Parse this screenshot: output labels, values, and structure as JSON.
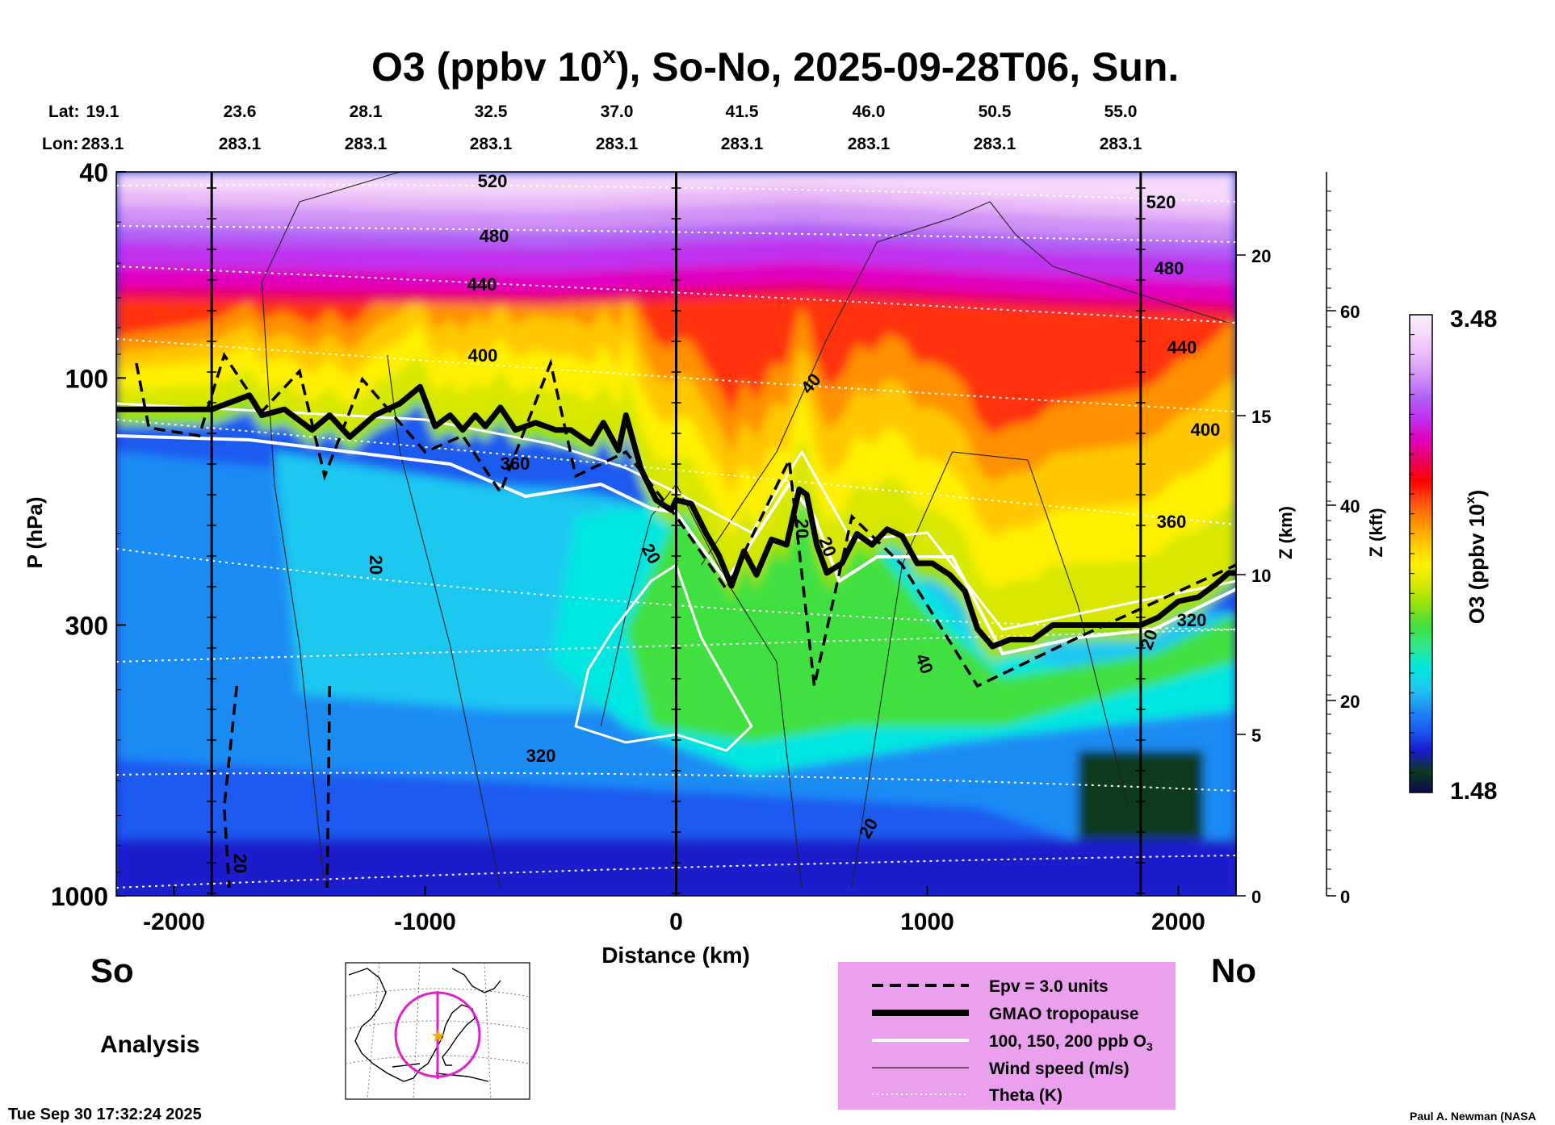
{
  "title": "O3 (ppbv 10",
  "title_sup": "x",
  "title_rest": "), So-No, 2025-09-28T06, Sun.",
  "lat_label": "Lat:",
  "lon_label": "Lon:",
  "lats": [
    "19.1",
    "23.6",
    "28.1",
    "32.5",
    "37.0",
    "41.5",
    "46.0",
    "50.5",
    "55.0"
  ],
  "lons": [
    "283.1",
    "283.1",
    "283.1",
    "283.1",
    "283.1",
    "283.1",
    "283.1",
    "283.1",
    "283.1"
  ],
  "y_label": "P (hPa)",
  "x_label": "Distance (km)",
  "z_km_label": "Z (km)",
  "z_kft_label": "Z (kft)",
  "left_end": "So",
  "right_end": "No",
  "analysis": "Analysis",
  "timestamp": "Tue Sep 30 17:32:24 2025",
  "credit": "Paul A. Newman (NASA",
  "colorbar": {
    "label": "O3 (ppbv 10",
    "label_sup": "x",
    "label_end": ")",
    "max_label": "3.48",
    "min_label": "1.48",
    "colors": [
      "#0a0a50",
      "#0b3a1e",
      "#1a1acc",
      "#1e5af0",
      "#1e8cf5",
      "#1ec8f0",
      "#00e6e0",
      "#30e890",
      "#40e040",
      "#90e010",
      "#d8e800",
      "#fff000",
      "#ffc800",
      "#ff9000",
      "#ff5010",
      "#ff0000",
      "#e80060",
      "#e000c0",
      "#c030f0",
      "#b060f5",
      "#d090f5",
      "#e8b8f8",
      "#f4d8fa",
      "#fbeefb"
    ]
  },
  "legend": {
    "background": "#eba0ee",
    "items": [
      "Epv = 3.0 units",
      "GMAO tropopause",
      "100, 150, 200 ppb O",
      "Wind speed (m/s)",
      "Theta (K)"
    ],
    "o3_sub": "3"
  },
  "contour_labels": {
    "theta": [
      "520",
      "480",
      "440",
      "400",
      "360",
      "320",
      "520",
      "480",
      "440",
      "400",
      "360",
      "320"
    ],
    "wind": [
      "20",
      "20",
      "40",
      "20",
      "20",
      "40",
      "20",
      "20",
      "20"
    ]
  },
  "chart_data": {
    "type": "heatmap",
    "title": "O3 (ppbv 10^x), So-No, 2025-09-28T06, Sun.",
    "xlabel": "Distance (km)",
    "ylabel": "P (hPa)",
    "xlim": [
      -2230,
      2230
    ],
    "ylim": [
      1000,
      40
    ],
    "yscale": "log",
    "x_ticks": [
      -2000,
      -1000,
      0,
      1000,
      2000
    ],
    "y_ticks": [
      40,
      100,
      300,
      1000
    ],
    "z_km_ticks": [
      0,
      5,
      10,
      15,
      20
    ],
    "z_kft_ticks": [
      0,
      20,
      40,
      60
    ],
    "colorbar_range": [
      1.48,
      3.48
    ],
    "tropopause": {
      "x": [
        -2230,
        -1850,
        -1700,
        -1650,
        -1560,
        -1450,
        -1380,
        -1300,
        -1200,
        -1100,
        -1020,
        -960,
        -900,
        -850,
        -800,
        -760,
        -700,
        -640,
        -560,
        -480,
        -420,
        -340,
        -290,
        -230,
        -200,
        -140,
        -80,
        -20,
        0,
        60,
        120,
        170,
        220,
        270,
        320,
        380,
        440,
        490,
        520,
        560,
        600,
        660,
        720,
        780,
        840,
        900,
        960,
        1020,
        1090,
        1150,
        1200,
        1260,
        1330,
        1420,
        1500,
        1600,
        1700,
        1800,
        1850,
        1920,
        2000,
        2080,
        2150,
        2200,
        2230
      ],
      "p": [
        115,
        115,
        108,
        118,
        115,
        126,
        118,
        130,
        118,
        112,
        104,
        124,
        118,
        126,
        118,
        124,
        114,
        126,
        122,
        126,
        126,
        134,
        122,
        138,
        118,
        150,
        172,
        180,
        172,
        175,
        200,
        220,
        252,
        216,
        240,
        205,
        210,
        164,
        168,
        210,
        238,
        228,
        200,
        210,
        196,
        202,
        228,
        228,
        240,
        258,
        305,
        330,
        320,
        320,
        300,
        300,
        300,
        300,
        300,
        290,
        270,
        265,
        250,
        238,
        238
      ]
    },
    "series": [
      {
        "name": "Epv = 3.0 units",
        "style": "dashed"
      },
      {
        "name": "GMAO tropopause",
        "style": "thick"
      },
      {
        "name": "100, 150, 200 ppb O3",
        "style": "white"
      },
      {
        "name": "Wind speed (m/s)",
        "style": "thin"
      },
      {
        "name": "Theta (K)",
        "style": "dotted"
      }
    ],
    "grid": false
  }
}
